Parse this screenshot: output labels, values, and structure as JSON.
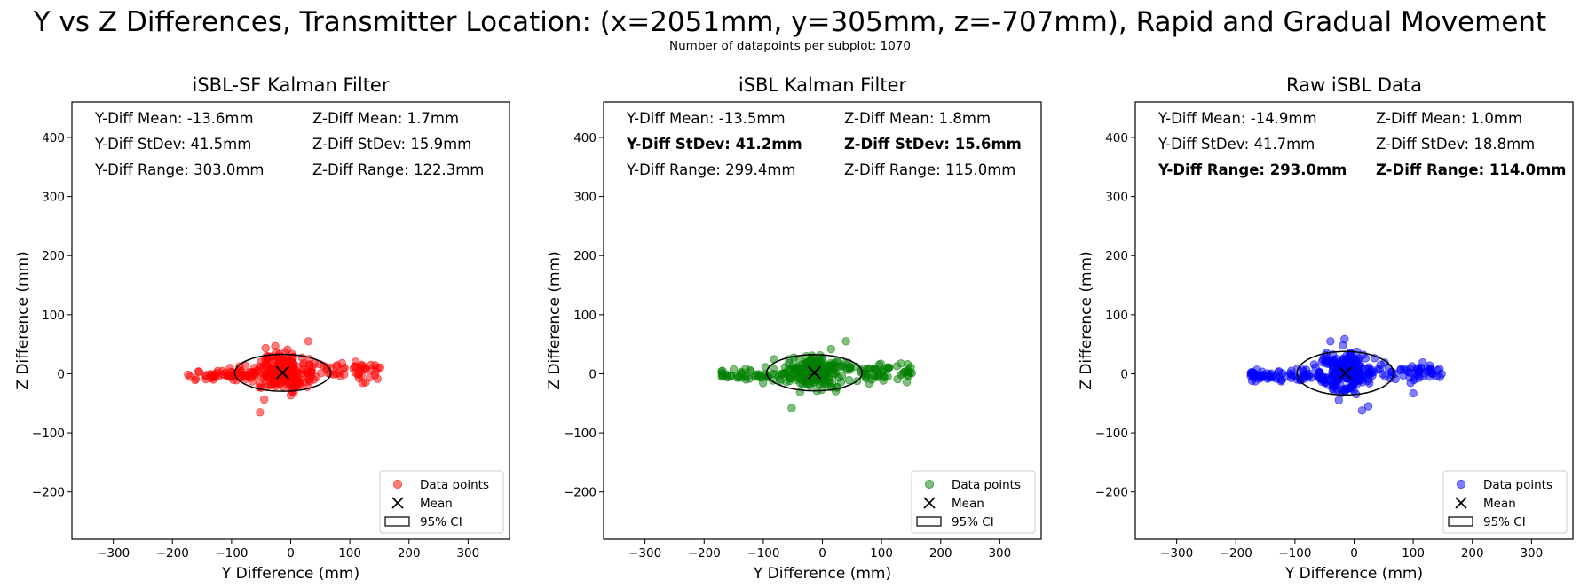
{
  "figure": {
    "title": "Y vs Z Differences, Transmitter Location: (x=2051mm, y=305mm, z=-707mm), Rapid and Gradual Movement",
    "subtitle": "Number of datapoints per subplot: 1070"
  },
  "chart_data": [
    {
      "type": "scatter",
      "title": "iSBL-SF Kalman Filter",
      "xlabel": "Y Difference (mm)",
      "ylabel": "Z Difference (mm)",
      "xlim": [
        -370,
        370
      ],
      "ylim": [
        -280,
        460
      ],
      "xticks": [
        -300,
        -200,
        -100,
        0,
        100,
        200,
        300
      ],
      "yticks": [
        -200,
        -100,
        0,
        100,
        200,
        300,
        400
      ],
      "grid": false,
      "color": "#ff0000",
      "mean": [
        -13.6,
        1.7
      ],
      "std": [
        41.5,
        15.9
      ],
      "range": [
        303.0,
        122.3
      ],
      "ci_ellipse": {
        "center": [
          -13.6,
          1.7
        ],
        "half_width": 81.3,
        "half_height": 31.2
      },
      "points_drawn": 320,
      "outliers": [
        [
          -52,
          -65
        ],
        [
          136,
          15
        ],
        [
          -170,
          -5
        ],
        [
          30,
          55
        ]
      ],
      "stats_left": [
        "Y-Diff Mean: -13.6mm",
        "Y-Diff StDev: 41.5mm",
        "Y-Diff Range: 303.0mm"
      ],
      "stats_right": [
        "Z-Diff Mean: 1.7mm",
        "Z-Diff StDev: 15.9mm",
        "Z-Diff Range: 122.3mm"
      ],
      "stats_bold_row": -1,
      "legend": {
        "position": "lower right",
        "entries": [
          "Data points",
          "Mean",
          "95% CI"
        ]
      }
    },
    {
      "type": "scatter",
      "title": "iSBL Kalman Filter",
      "xlabel": "Y Difference (mm)",
      "ylabel": "Z Difference (mm)",
      "xlim": [
        -370,
        370
      ],
      "ylim": [
        -280,
        460
      ],
      "xticks": [
        -300,
        -200,
        -100,
        0,
        100,
        200,
        300
      ],
      "yticks": [
        -200,
        -100,
        0,
        100,
        200,
        300,
        400
      ],
      "grid": false,
      "color": "#008000",
      "mean": [
        -13.5,
        1.8
      ],
      "std": [
        41.2,
        15.6
      ],
      "range": [
        299.4,
        115.0
      ],
      "ci_ellipse": {
        "center": [
          -13.5,
          1.8
        ],
        "half_width": 80.7,
        "half_height": 30.6
      },
      "points_drawn": 320,
      "outliers": [
        [
          -52,
          -58
        ],
        [
          126,
          13
        ],
        [
          -170,
          -5
        ],
        [
          40,
          55
        ]
      ],
      "stats_left": [
        "Y-Diff Mean: -13.5mm",
        "Y-Diff StDev: 41.2mm",
        "Y-Diff Range: 299.4mm"
      ],
      "stats_right": [
        "Z-Diff Mean: 1.8mm",
        "Z-Diff StDev: 15.6mm",
        "Z-Diff Range: 115.0mm"
      ],
      "stats_bold_row": 1,
      "legend": {
        "position": "lower right",
        "entries": [
          "Data points",
          "Mean",
          "95% CI"
        ]
      }
    },
    {
      "type": "scatter",
      "title": "Raw iSBL Data",
      "xlabel": "Y Difference (mm)",
      "ylabel": "Z Difference (mm)",
      "xlim": [
        -370,
        370
      ],
      "ylim": [
        -280,
        460
      ],
      "xticks": [
        -300,
        -200,
        -100,
        0,
        100,
        200,
        300
      ],
      "yticks": [
        -200,
        -100,
        0,
        100,
        200,
        300,
        400
      ],
      "grid": false,
      "color": "#0000ff",
      "mean": [
        -14.9,
        1.0
      ],
      "std": [
        41.7,
        18.8
      ],
      "range": [
        293.0,
        114.0
      ],
      "ci_ellipse": {
        "center": [
          -14.9,
          1.0
        ],
        "half_width": 81.7,
        "half_height": 36.8
      },
      "points_drawn": 340,
      "outliers": [
        [
          24,
          -55
        ],
        [
          100,
          -33
        ],
        [
          -170,
          -7
        ],
        [
          128,
          14
        ],
        [
          -40,
          55
        ]
      ],
      "stats_left": [
        "Y-Diff Mean: -14.9mm",
        "Y-Diff StDev: 41.7mm",
        "Y-Diff Range: 293.0mm"
      ],
      "stats_right": [
        "Z-Diff Mean: 1.0mm",
        "Z-Diff StDev: 18.8mm",
        "Z-Diff Range: 114.0mm"
      ],
      "stats_bold_row": 2,
      "legend": {
        "position": "lower right",
        "entries": [
          "Data points",
          "Mean",
          "95% CI"
        ]
      }
    }
  ]
}
